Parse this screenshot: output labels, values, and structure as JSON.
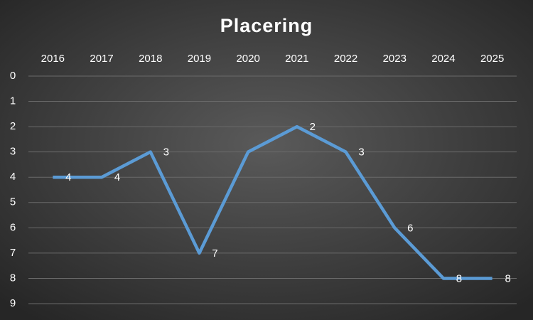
{
  "chart_data": {
    "type": "line",
    "title": "Placering",
    "categories": [
      "2016",
      "2017",
      "2018",
      "2019",
      "2020",
      "2021",
      "2022",
      "2023",
      "2024",
      "2025"
    ],
    "values": [
      4,
      4,
      3,
      7,
      3,
      2,
      3,
      6,
      8,
      8
    ],
    "value_labels": [
      "4",
      "4",
      "3",
      "7",
      null,
      "2",
      "3",
      "6",
      "8",
      "8"
    ],
    "color": "#5b9bd5",
    "ylim": [
      0,
      9
    ],
    "yticks": [
      0,
      1,
      2,
      3,
      4,
      5,
      6,
      7,
      8,
      9
    ],
    "y_inverted": true,
    "grid": true
  }
}
